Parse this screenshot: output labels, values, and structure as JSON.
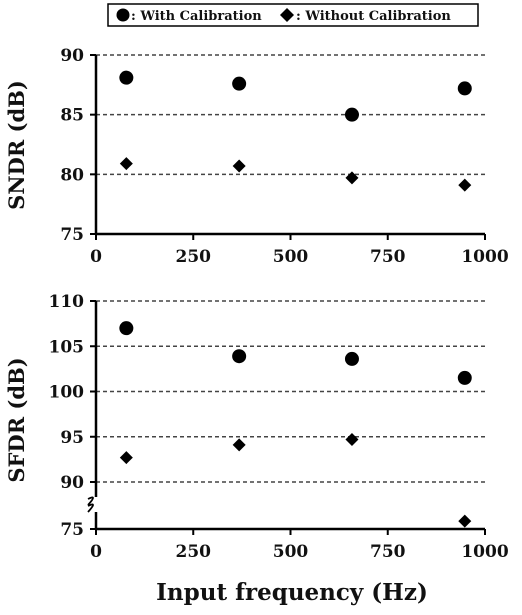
{
  "legend": {
    "entries": [
      {
        "marker": "circle",
        "label": ": With Calibration"
      },
      {
        "marker": "diamond",
        "label": ": Without Calibration"
      }
    ]
  },
  "shared_xlabel": "Input frequency (Hz)",
  "chart_data": [
    {
      "type": "scatter",
      "title": "",
      "ylabel": "SNDR (dB)",
      "xlabel": "",
      "xlim": [
        0,
        1000
      ],
      "ylim": [
        75,
        90
      ],
      "xticks": [
        "0",
        "250",
        "500",
        "750",
        "1000"
      ],
      "yticks": [
        "75",
        "80",
        "85",
        "90"
      ],
      "grid": "horizontal dashed",
      "series": [
        {
          "name": "With Calibration",
          "marker": "circle",
          "x": [
            78,
            368,
            658,
            948
          ],
          "y": [
            88.1,
            87.6,
            85.0,
            87.2
          ]
        },
        {
          "name": "Without Calibration",
          "marker": "diamond",
          "x": [
            78,
            368,
            658,
            948
          ],
          "y": [
            80.9,
            80.7,
            79.7,
            79.1
          ]
        }
      ]
    },
    {
      "type": "scatter",
      "title": "",
      "ylabel": "SFDR (dB)",
      "xlabel": "Input frequency (Hz)",
      "xlim": [
        0,
        1000
      ],
      "ylim": [
        75,
        110
      ],
      "axis_break": [
        75,
        90
      ],
      "xticks": [
        "0",
        "250",
        "500",
        "750",
        "1000"
      ],
      "yticks": [
        "75",
        "90",
        "95",
        "100",
        "105",
        "110"
      ],
      "grid": "horizontal dashed",
      "series": [
        {
          "name": "With Calibration",
          "marker": "circle",
          "x": [
            78,
            368,
            658,
            948
          ],
          "y": [
            107.0,
            103.9,
            103.6,
            101.5
          ]
        },
        {
          "name": "Without Calibration",
          "marker": "diamond",
          "x": [
            78,
            368,
            658,
            948
          ],
          "y": [
            92.7,
            94.1,
            94.7,
            77.5
          ]
        }
      ]
    }
  ]
}
